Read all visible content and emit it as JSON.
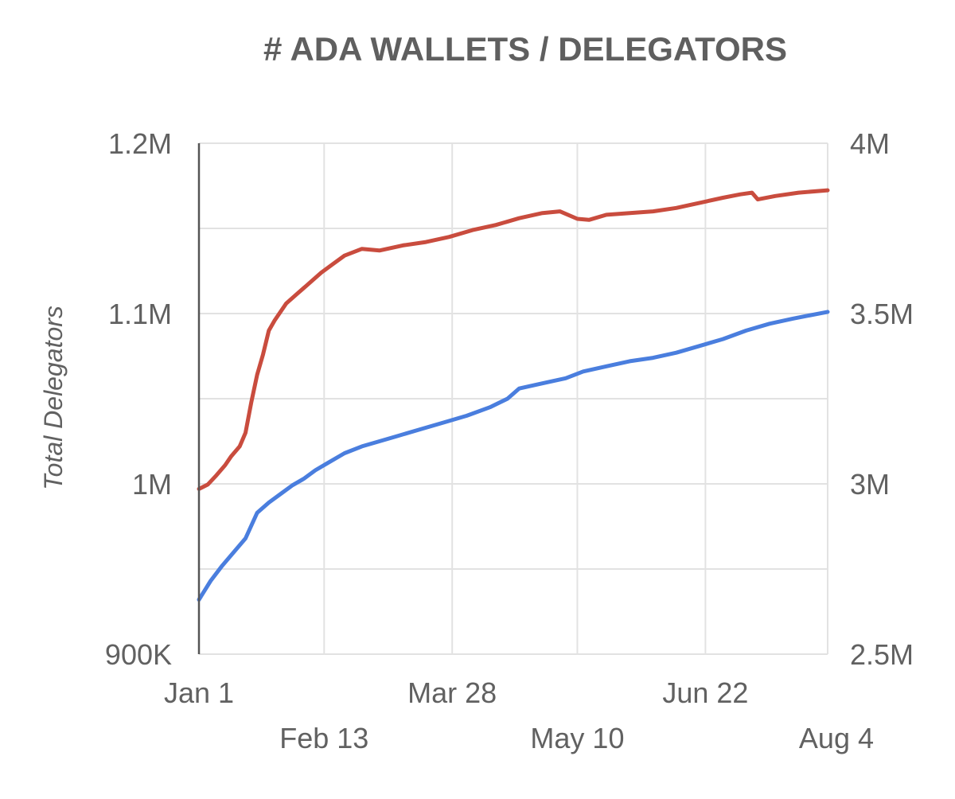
{
  "chart_data": {
    "type": "line",
    "title": "# ADA WALLETS / DELEGATORS",
    "ylabel": "Total Delegators",
    "y2label": "",
    "xlabel": "",
    "x_ticks": [
      {
        "day": 0,
        "label": "Jan 1"
      },
      {
        "day": 43,
        "label": "Feb 13"
      },
      {
        "day": 87,
        "label": "Mar 28"
      },
      {
        "day": 130,
        "label": "May 10"
      },
      {
        "day": 174,
        "label": "Jun 22"
      },
      {
        "day": 216,
        "label": "Aug 4"
      }
    ],
    "x_range_days": [
      0,
      216
    ],
    "y_left": {
      "range": [
        900000,
        1200000
      ],
      "ticks": [
        {
          "value": 900000,
          "label": "900K"
        },
        {
          "value": 1000000,
          "label": "1M"
        },
        {
          "value": 1100000,
          "label": "1.1M"
        },
        {
          "value": 1200000,
          "label": "1.2M"
        }
      ],
      "minor_ticks": [
        950000,
        1050000,
        1150000
      ]
    },
    "y_right": {
      "range": [
        2500000,
        4000000
      ],
      "ticks": [
        {
          "value": 2500000,
          "label": "2.5M"
        },
        {
          "value": 3000000,
          "label": "3M"
        },
        {
          "value": 3500000,
          "label": "3.5M"
        },
        {
          "value": 4000000,
          "label": "4M"
        }
      ]
    },
    "grid": true,
    "legend": "none",
    "series": [
      {
        "axis": "left",
        "color": "#4a7ede",
        "points": [
          [
            0,
            932000
          ],
          [
            4,
            943000
          ],
          [
            8,
            952000
          ],
          [
            12,
            960000
          ],
          [
            16,
            968000
          ],
          [
            20,
            983000
          ],
          [
            24,
            989000
          ],
          [
            28,
            994000
          ],
          [
            32,
            999000
          ],
          [
            36,
            1003000
          ],
          [
            40,
            1008000
          ],
          [
            44,
            1012000
          ],
          [
            50,
            1018000
          ],
          [
            56,
            1022000
          ],
          [
            62,
            1025000
          ],
          [
            68,
            1028000
          ],
          [
            76,
            1032000
          ],
          [
            84,
            1036000
          ],
          [
            92,
            1040000
          ],
          [
            100,
            1045000
          ],
          [
            106,
            1050000
          ],
          [
            110,
            1056000
          ],
          [
            118,
            1059000
          ],
          [
            126,
            1062000
          ],
          [
            132,
            1066000
          ],
          [
            140,
            1069000
          ],
          [
            148,
            1072000
          ],
          [
            156,
            1074000
          ],
          [
            164,
            1077000
          ],
          [
            172,
            1081000
          ],
          [
            180,
            1085000
          ],
          [
            188,
            1090000
          ],
          [
            196,
            1094000
          ],
          [
            204,
            1097000
          ],
          [
            216,
            1101000
          ]
        ]
      },
      {
        "axis": "right",
        "color": "#c94c3e",
        "points": [
          [
            0,
            2985000
          ],
          [
            3,
            2998000
          ],
          [
            6,
            3025000
          ],
          [
            9,
            3055000
          ],
          [
            11,
            3080000
          ],
          [
            14,
            3110000
          ],
          [
            16,
            3150000
          ],
          [
            18,
            3240000
          ],
          [
            20,
            3320000
          ],
          [
            22,
            3380000
          ],
          [
            24,
            3450000
          ],
          [
            26,
            3480000
          ],
          [
            30,
            3530000
          ],
          [
            34,
            3560000
          ],
          [
            38,
            3590000
          ],
          [
            42,
            3620000
          ],
          [
            46,
            3645000
          ],
          [
            50,
            3670000
          ],
          [
            56,
            3690000
          ],
          [
            62,
            3685000
          ],
          [
            70,
            3700000
          ],
          [
            78,
            3710000
          ],
          [
            86,
            3725000
          ],
          [
            94,
            3745000
          ],
          [
            102,
            3760000
          ],
          [
            110,
            3780000
          ],
          [
            118,
            3795000
          ],
          [
            124,
            3800000
          ],
          [
            130,
            3778000
          ],
          [
            134,
            3775000
          ],
          [
            140,
            3790000
          ],
          [
            148,
            3795000
          ],
          [
            156,
            3800000
          ],
          [
            164,
            3810000
          ],
          [
            172,
            3825000
          ],
          [
            180,
            3840000
          ],
          [
            186,
            3850000
          ],
          [
            190,
            3855000
          ],
          [
            192,
            3835000
          ],
          [
            198,
            3845000
          ],
          [
            206,
            3855000
          ],
          [
            216,
            3862000
          ]
        ]
      }
    ]
  }
}
